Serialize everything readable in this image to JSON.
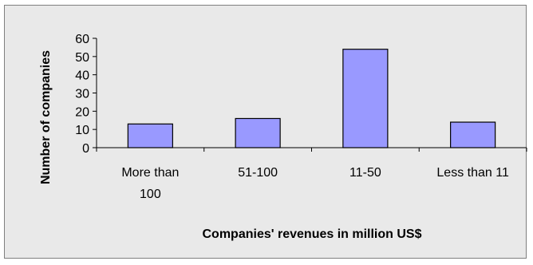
{
  "chart_data": {
    "type": "bar",
    "categories": [
      "More than 100",
      "51-100",
      "11-50",
      "Less than 11"
    ],
    "category_lines": [
      [
        "More than",
        "100"
      ],
      [
        "51-100"
      ],
      [
        "11-50"
      ],
      [
        "Less than 11"
      ]
    ],
    "values": [
      13,
      16,
      54,
      14
    ],
    "title": "",
    "xlabel": "Companies' revenues in million US$",
    "ylabel": "Number of companies",
    "ylim": [
      0,
      60
    ],
    "yticks": [
      0,
      10,
      20,
      30,
      40,
      50,
      60
    ],
    "grid": false,
    "legend": "none",
    "colors": {
      "bar_fill": "#9999ff",
      "bar_stroke": "#000000",
      "plot_area": "#e9e9e9",
      "axis": "#000000"
    }
  }
}
